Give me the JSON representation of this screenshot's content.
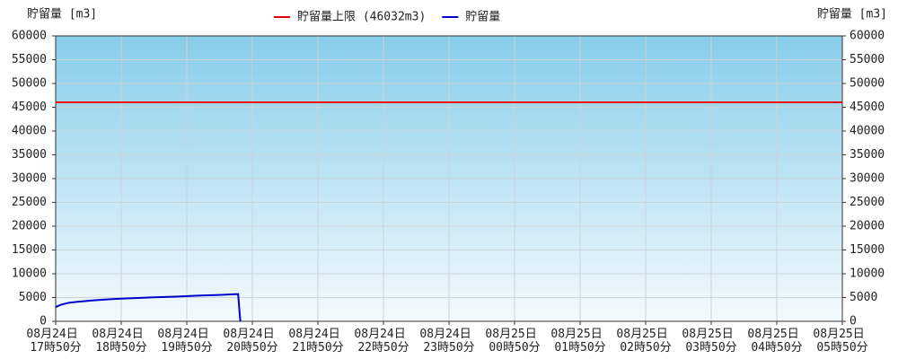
{
  "chart_data": {
    "type": "line",
    "y_label": "貯留量 [m3]",
    "y2_label": "貯留量 [m3]",
    "xlim": [
      1070,
      1790
    ],
    "xticks": [
      {
        "value": 1070,
        "label": "08月24日 17時50分"
      },
      {
        "value": 1130,
        "label": "08月24日 18時50分"
      },
      {
        "value": 1190,
        "label": "08月24日 19時50分"
      },
      {
        "value": 1250,
        "label": "08月24日 20時50分"
      },
      {
        "value": 1310,
        "label": "08月24日 21時50分"
      },
      {
        "value": 1370,
        "label": "08月24日 22時50分"
      },
      {
        "value": 1430,
        "label": "08月24日 23時50分"
      },
      {
        "value": 1490,
        "label": "08月25日 00時50分"
      },
      {
        "value": 1550,
        "label": "08月25日 01時50分"
      },
      {
        "value": 1610,
        "label": "08月25日 02時50分"
      },
      {
        "value": 1670,
        "label": "08月25日 03時50分"
      },
      {
        "value": 1730,
        "label": "08月25日 04時50分"
      },
      {
        "value": 1790,
        "label": "08月25日 05時50分"
      }
    ],
    "ylim": [
      0,
      60000
    ],
    "yticks": [
      0,
      5000,
      10000,
      15000,
      20000,
      25000,
      30000,
      35000,
      40000,
      45000,
      50000,
      55000,
      60000
    ],
    "grid": true,
    "series": [
      {
        "name": "貯留量上限 (46032m3)",
        "color": "#ee0000",
        "x": [
          1070,
          1790
        ],
        "values": [
          46032,
          46032
        ]
      },
      {
        "name": "貯留量",
        "color": "#0000cc",
        "x": [
          1070,
          1075,
          1082,
          1090,
          1105,
          1120,
          1140,
          1160,
          1180,
          1200,
          1220,
          1235,
          1237,
          1239
        ],
        "values": [
          3000,
          3500,
          3900,
          4100,
          4400,
          4650,
          4850,
          5050,
          5200,
          5400,
          5550,
          5700,
          5700,
          0
        ]
      }
    ]
  }
}
